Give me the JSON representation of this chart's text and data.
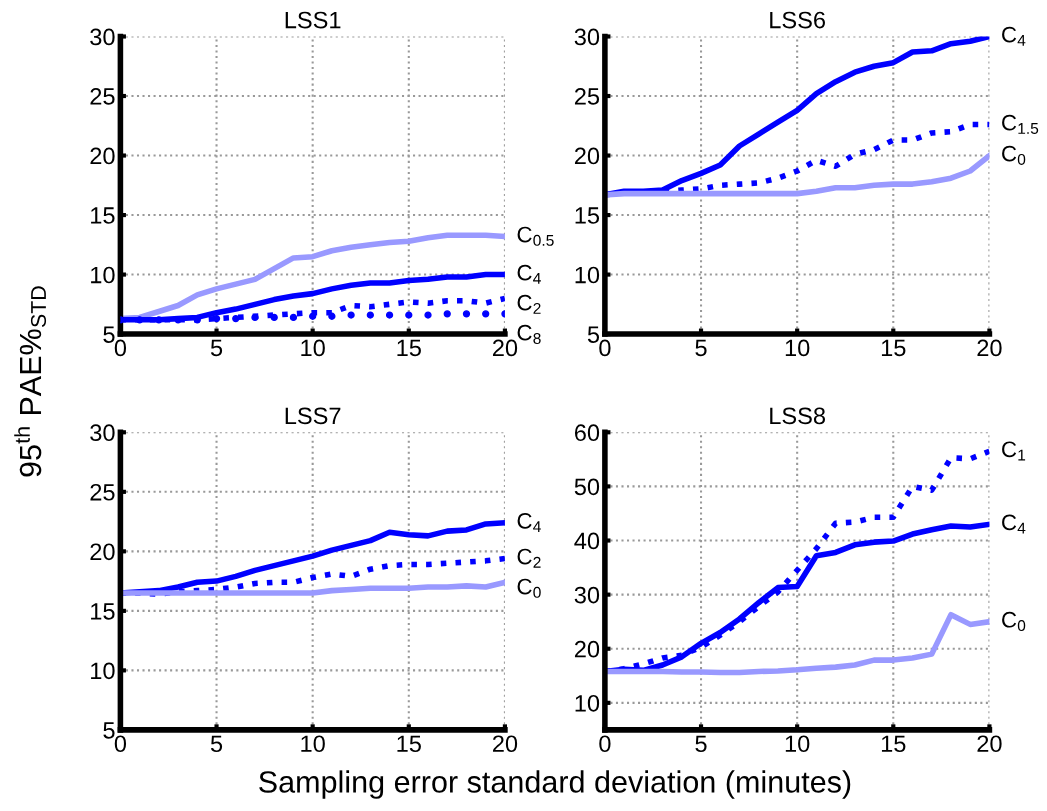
{
  "chart_data": [
    {
      "type": "line",
      "title": "LSS1",
      "ylabel": "95$^{th}$ PAE%$_{STD}$",
      "x": [
        0,
        1,
        2,
        3,
        4,
        5,
        6,
        7,
        8,
        9,
        10,
        11,
        12,
        13,
        14,
        15,
        16,
        17,
        18,
        19,
        20
      ],
      "xlim": [
        0,
        20
      ],
      "xticks": [
        0,
        5,
        10,
        15,
        20
      ],
      "ylim": [
        5,
        30
      ],
      "yticks": [
        5,
        10,
        15,
        20,
        25,
        30
      ],
      "grid": true,
      "series": [
        {
          "name": "C$_{0.5}$",
          "color": "#9999ff",
          "line_style": "solid",
          "values": [
            6.3,
            6.4,
            6.9,
            7.4,
            8.3,
            8.8,
            9.2,
            9.6,
            10.5,
            11.4,
            11.5,
            12.0,
            12.3,
            12.5,
            12.7,
            12.8,
            13.1,
            13.3,
            13.3,
            13.3,
            13.2
          ]
        },
        {
          "name": "C$_{4}$",
          "color": "#0000ff",
          "line_style": "solid",
          "values": [
            6.2,
            6.2,
            6.2,
            6.3,
            6.4,
            6.8,
            7.1,
            7.5,
            7.9,
            8.2,
            8.4,
            8.8,
            9.1,
            9.3,
            9.3,
            9.5,
            9.6,
            9.8,
            9.8,
            10.0,
            10.0
          ]
        },
        {
          "name": "C$_{2}$",
          "color": "#0000ff",
          "line_style": "dotted",
          "values": [
            6.2,
            6.2,
            6.2,
            6.2,
            6.2,
            6.3,
            6.4,
            6.5,
            6.6,
            6.7,
            6.8,
            6.8,
            7.4,
            7.3,
            7.5,
            7.7,
            7.6,
            7.8,
            7.8,
            7.6,
            8.0
          ]
        },
        {
          "name": "C$_{8}$",
          "color": "#0000ff",
          "type": "scatter",
          "marker": "circle",
          "values": [
            6.2,
            6.2,
            6.2,
            6.2,
            6.2,
            6.3,
            6.3,
            6.4,
            6.4,
            6.4,
            6.5,
            6.5,
            6.6,
            6.6,
            6.6,
            6.6,
            6.6,
            6.7,
            6.7,
            6.7,
            6.7
          ]
        }
      ]
    },
    {
      "type": "line",
      "title": "LSS6",
      "x": [
        0,
        1,
        2,
        3,
        4,
        5,
        6,
        7,
        8,
        9,
        10,
        11,
        12,
        13,
        14,
        15,
        16,
        17,
        18,
        19,
        20
      ],
      "xlim": [
        0,
        20
      ],
      "xticks": [
        0,
        5,
        10,
        15,
        20
      ],
      "ylim": [
        5,
        30
      ],
      "yticks": [
        5,
        10,
        15,
        20,
        25,
        30
      ],
      "grid": true,
      "series": [
        {
          "name": "C$_{4}$",
          "color": "#0000ff",
          "line_style": "solid",
          "values": [
            16.7,
            17.0,
            17.0,
            17.1,
            17.9,
            18.5,
            19.2,
            20.8,
            21.8,
            22.8,
            23.8,
            25.2,
            26.2,
            27.0,
            27.5,
            27.8,
            28.7,
            28.8,
            29.4,
            29.6,
            30.0
          ]
        },
        {
          "name": "C$_{1.5}$",
          "color": "#0000ff",
          "line_style": "dotted",
          "values": [
            16.7,
            16.9,
            16.9,
            17.0,
            17.1,
            17.2,
            17.5,
            17.6,
            17.7,
            18.1,
            18.7,
            19.6,
            19.1,
            20.1,
            20.5,
            21.3,
            21.3,
            21.9,
            22.0,
            22.6,
            22.6
          ]
        },
        {
          "name": "C$_{0}$",
          "color": "#9999ff",
          "line_style": "solid",
          "values": [
            16.7,
            16.8,
            16.8,
            16.8,
            16.8,
            16.8,
            16.8,
            16.8,
            16.8,
            16.8,
            16.8,
            17.0,
            17.3,
            17.3,
            17.5,
            17.6,
            17.6,
            17.8,
            18.1,
            18.7,
            20.0
          ]
        }
      ]
    },
    {
      "type": "line",
      "title": "LSS7",
      "x": [
        0,
        1,
        2,
        3,
        4,
        5,
        6,
        7,
        8,
        9,
        10,
        11,
        12,
        13,
        14,
        15,
        16,
        17,
        18,
        19,
        20
      ],
      "xlim": [
        0,
        20
      ],
      "xticks": [
        0,
        5,
        10,
        15,
        20
      ],
      "ylim": [
        5,
        30
      ],
      "yticks": [
        5,
        10,
        15,
        20,
        25,
        30
      ],
      "grid": true,
      "series": [
        {
          "name": "C$_{4}$",
          "color": "#0000ff",
          "line_style": "solid",
          "values": [
            16.5,
            16.6,
            16.7,
            17.0,
            17.4,
            17.5,
            17.9,
            18.4,
            18.8,
            19.2,
            19.6,
            20.1,
            20.5,
            20.9,
            21.6,
            21.4,
            21.3,
            21.7,
            21.8,
            22.3,
            22.4
          ]
        },
        {
          "name": "C$_{2}$",
          "color": "#0000ff",
          "line_style": "dotted",
          "values": [
            16.5,
            16.5,
            16.4,
            16.6,
            16.7,
            16.8,
            17.0,
            17.3,
            17.4,
            17.4,
            17.8,
            18.1,
            17.9,
            18.5,
            18.8,
            18.9,
            18.9,
            19.0,
            19.1,
            19.2,
            19.4
          ]
        },
        {
          "name": "C$_{0}$",
          "color": "#9999ff",
          "line_style": "solid",
          "values": [
            16.5,
            16.5,
            16.5,
            16.5,
            16.5,
            16.5,
            16.5,
            16.5,
            16.5,
            16.5,
            16.5,
            16.7,
            16.8,
            16.9,
            16.9,
            16.9,
            17.0,
            17.0,
            17.1,
            17.0,
            17.4
          ]
        }
      ]
    },
    {
      "type": "line",
      "title": "LSS8",
      "xlabel": "Sampling error standard deviation (minutes)",
      "x": [
        0,
        1,
        2,
        3,
        4,
        5,
        6,
        7,
        8,
        9,
        10,
        11,
        12,
        13,
        14,
        15,
        16,
        17,
        18,
        19,
        20
      ],
      "xlim": [
        0,
        20
      ],
      "xticks": [
        0,
        5,
        10,
        15,
        20
      ],
      "ylim": [
        5,
        60
      ],
      "yticks": [
        10,
        20,
        30,
        40,
        50,
        60
      ],
      "grid": true,
      "series": [
        {
          "name": "C$_{1}$",
          "color": "#0000ff",
          "line_style": "dotted",
          "values": [
            15.8,
            16.3,
            17.2,
            18.3,
            18.8,
            20.3,
            22.5,
            25.0,
            27.8,
            30.5,
            34.5,
            38.5,
            43.2,
            43.4,
            44.3,
            44.3,
            50.0,
            49.3,
            55.3,
            55.1,
            56.5
          ]
        },
        {
          "name": "C$_{4}$",
          "color": "#0000ff",
          "line_style": "solid",
          "values": [
            15.8,
            16.2,
            16.0,
            17.0,
            18.5,
            21.0,
            23.0,
            25.5,
            28.5,
            31.3,
            31.5,
            37.2,
            37.8,
            39.2,
            39.7,
            39.9,
            41.2,
            42.0,
            42.7,
            42.5,
            43.0
          ]
        },
        {
          "name": "C$_{0}$",
          "color": "#9999ff",
          "line_style": "solid",
          "values": [
            15.8,
            15.8,
            15.8,
            15.8,
            15.7,
            15.7,
            15.6,
            15.6,
            15.8,
            15.9,
            16.1,
            16.4,
            16.6,
            17.0,
            17.9,
            17.9,
            18.3,
            19.0,
            26.3,
            24.5,
            25.0
          ]
        }
      ]
    }
  ]
}
